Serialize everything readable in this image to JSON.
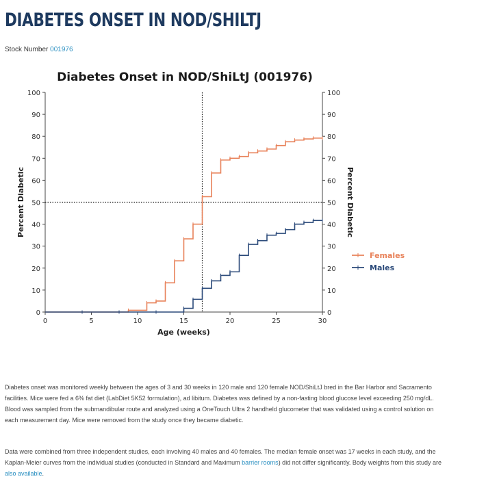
{
  "page": {
    "title": "DIABETES ONSET IN NOD/SHILTJ",
    "stock_label": "Stock Number",
    "stock_number": "001976",
    "paragraph1": "Diabetes onset was monitored weekly between the ages of 3 and 30 weeks in 120 male and 120 female NOD/ShiLtJ bred in the Bar Harbor and Sacramento facilities. Mice were fed a 6% fat diet (LabDiet 5K52 formulation), ad libitum. Diabetes was defined by a non-fasting blood glucose level exceeding 250 mg/dL. Blood was sampled from the submandibular route and analyzed using a OneTouch Ultra 2 handheld glucometer that was validated using a control solution on each measurement day.  Mice were removed from the study once they became diabetic.",
    "paragraph2_part1": "Data were combined from three independent studies, each involving 40 males and 40 females. The median female onset was 17 weeks in each study, and the Kaplan-Meier curves from the individual studies (conducted in Standard and Maximum ",
    "paragraph2_link1": "barrier rooms",
    "paragraph2_part2": ") did not differ significantly.  Body weights from this study are ",
    "paragraph2_link2": "also available",
    "paragraph2_part3": "."
  },
  "chart_data": {
    "type": "line",
    "step": true,
    "title": "Diabetes Onset in NOD/ShiLtJ (001976)",
    "xlabel": "Age (weeks)",
    "ylabel": "Percent Diabetic",
    "ylabel_right": "Percent Diabetic",
    "xlim": [
      0,
      30
    ],
    "ylim": [
      0,
      100
    ],
    "xticks": [
      0,
      5,
      10,
      15,
      20,
      25,
      30
    ],
    "yticks": [
      0,
      10,
      20,
      30,
      40,
      50,
      60,
      70,
      80,
      90,
      100
    ],
    "grid": false,
    "legend_position": "right",
    "reference_lines": {
      "x": 17,
      "y": 50,
      "style": "dotted"
    },
    "series": [
      {
        "name": "Females",
        "color": "#e8825a",
        "x": [
          0,
          9,
          11,
          12,
          13,
          14,
          15,
          16,
          17,
          18,
          19,
          20,
          21,
          22,
          23,
          24,
          25,
          26,
          27,
          28,
          29,
          30
        ],
        "y": [
          0,
          0.8,
          4.2,
          5,
          13.3,
          23.3,
          33.3,
          40,
          52.5,
          63.3,
          69.2,
          70,
          70.8,
          72.5,
          73.3,
          74.2,
          75.8,
          77.5,
          78.3,
          78.8,
          79.2,
          79.2
        ]
      },
      {
        "name": "Males",
        "color": "#2b4a7a",
        "x": [
          0,
          4,
          8,
          12,
          15,
          16,
          17,
          18,
          19,
          20,
          21,
          22,
          23,
          24,
          25,
          26,
          27,
          28,
          29,
          30
        ],
        "y": [
          0,
          0,
          0,
          0,
          1.7,
          5.8,
          10.8,
          14.2,
          16.7,
          18.3,
          25.8,
          30.8,
          32.5,
          35,
          35.8,
          37.5,
          40,
          40.8,
          41.7,
          41.7
        ]
      }
    ]
  }
}
